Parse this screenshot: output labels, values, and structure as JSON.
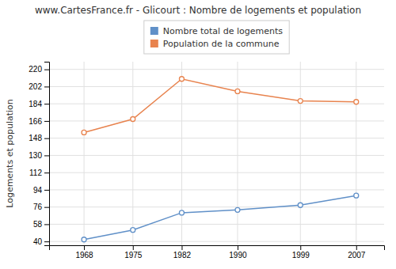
{
  "chart_data": {
    "type": "line",
    "title": "www.CartesFrance.fr - Glicourt : Nombre de logements et population",
    "ylabel": "Logements et population",
    "x": [
      1968,
      1975,
      1982,
      1990,
      1999,
      2007
    ],
    "series": [
      {
        "name": "Nombre total de logements",
        "color": "#6090c8",
        "marker": "circle",
        "values": [
          42,
          52,
          70,
          73,
          78,
          88
        ]
      },
      {
        "name": "Population de la commune",
        "color": "#e8834e",
        "marker": "circle",
        "values": [
          154,
          168,
          210,
          197,
          187,
          186
        ]
      }
    ],
    "xlim": [
      1963,
      2011
    ],
    "xticks": [
      1968,
      1975,
      1982,
      1990,
      1999,
      2007
    ],
    "ylim": [
      36,
      228
    ],
    "yticks": [
      40,
      58,
      76,
      94,
      112,
      130,
      148,
      166,
      184,
      202,
      220
    ],
    "grid": true,
    "legend": "top"
  }
}
